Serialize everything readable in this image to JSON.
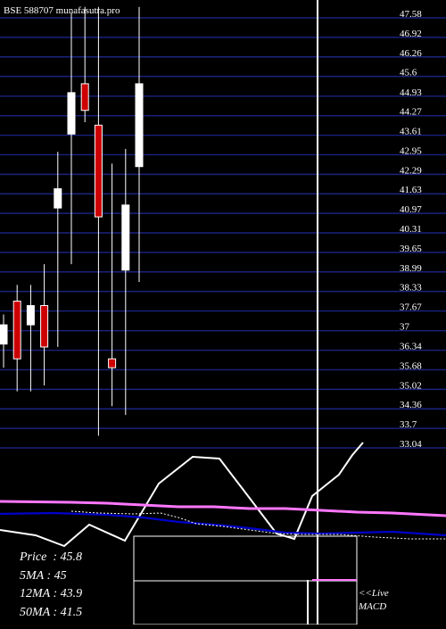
{
  "title": "BSE 588707 munafasutra.pro",
  "chart_data": {
    "type": "candlestick",
    "y_ticks": [
      47.58,
      46.92,
      46.26,
      45.6,
      44.93,
      44.27,
      43.61,
      42.95,
      42.29,
      41.63,
      40.97,
      40.31,
      39.65,
      38.99,
      38.33,
      37.67,
      37,
      36.34,
      35.68,
      35.02,
      34.36,
      33.7,
      33.04
    ],
    "ylim": [
      33.04,
      47.58
    ],
    "colors": {
      "up": "#ffffff",
      "down": "#cc0000",
      "grid": "#1a237e",
      "ma_short": "#ff77ff",
      "ma_long": "#0000cc"
    },
    "candles": [
      {
        "open": 36.4,
        "close": 37.05,
        "high": 37.4,
        "low": 35.6,
        "color": "up"
      },
      {
        "open": 37.85,
        "close": 35.9,
        "high": 38.4,
        "low": 34.8,
        "color": "down"
      },
      {
        "open": 37.05,
        "close": 37.7,
        "high": 38.4,
        "low": 34.8,
        "color": "up"
      },
      {
        "open": 37.7,
        "close": 36.3,
        "high": 39.1,
        "low": 35.0,
        "color": "down"
      },
      {
        "open": 41.0,
        "close": 41.65,
        "high": 42.9,
        "low": 36.3,
        "color": "up"
      },
      {
        "open": 43.5,
        "close": 44.9,
        "high": 47.6,
        "low": 39.1,
        "color": "up"
      },
      {
        "open": 45.2,
        "close": 44.3,
        "high": 47.8,
        "low": 43.9,
        "color": "down"
      },
      {
        "open": 43.8,
        "close": 40.7,
        "high": 47.8,
        "low": 33.3,
        "color": "down"
      },
      {
        "open": 35.9,
        "close": 35.6,
        "high": 42.5,
        "low": 34.3,
        "color": "down"
      },
      {
        "open": 38.9,
        "close": 41.1,
        "high": 43.0,
        "low": 34.0,
        "color": "up"
      },
      {
        "open": 42.4,
        "close": 45.2,
        "high": 47.8,
        "low": 38.5,
        "color": "up"
      }
    ],
    "stats": {
      "price_label": "Price",
      "price": "45.8",
      "ma5_label": "5MA",
      "ma5": "45",
      "ma12_label": "12MA",
      "ma12": "43.9",
      "ma50_label": "50MA",
      "ma50": "41.5"
    },
    "macd_label": "<<Live",
    "macd_label2": "MACD"
  }
}
